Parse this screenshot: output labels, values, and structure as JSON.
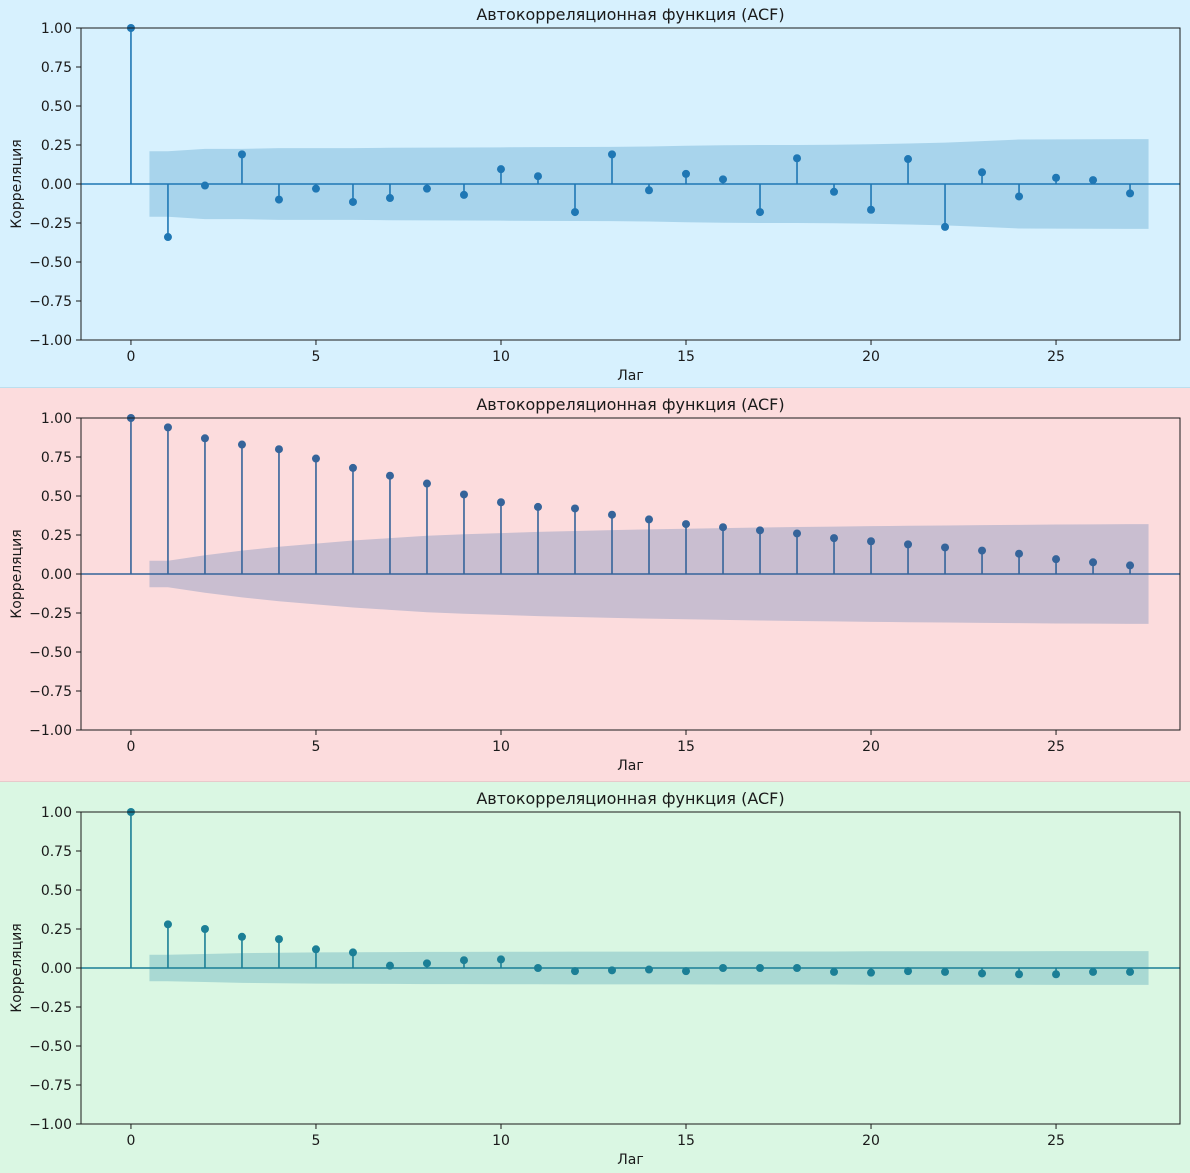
{
  "chart_data": [
    {
      "type": "stem",
      "title": "Автокорреляционная функция (ACF)",
      "xlabel": "Лаг",
      "ylabel": "Корреляция",
      "xlim": [
        -1.35,
        28.35
      ],
      "ylim": [
        -1.0,
        1.0
      ],
      "xticks": [
        0,
        5,
        10,
        15,
        20,
        25
      ],
      "yticks": [
        -1.0,
        -0.75,
        -0.5,
        -0.25,
        0.0,
        0.25,
        0.5,
        0.75,
        1.0
      ],
      "ytick_labels": [
        "−1.00",
        "−0.75",
        "−0.50",
        "−0.25",
        "0.00",
        "0.25",
        "0.50",
        "0.75",
        "1.00"
      ],
      "lags": [
        0,
        1,
        2,
        3,
        4,
        5,
        6,
        7,
        8,
        9,
        10,
        11,
        12,
        13,
        14,
        15,
        16,
        17,
        18,
        19,
        20,
        21,
        22,
        23,
        24,
        25,
        26,
        27
      ],
      "values": [
        1.0,
        -0.34,
        -0.01,
        0.19,
        -0.1,
        -0.03,
        -0.115,
        -0.09,
        -0.03,
        -0.07,
        0.095,
        0.05,
        -0.18,
        0.19,
        -0.04,
        0.065,
        0.03,
        -0.18,
        0.165,
        -0.05,
        -0.165,
        0.16,
        -0.275,
        0.075,
        -0.08,
        0.04,
        0.025,
        -0.06
      ],
      "confint": [
        0.21,
        0.225,
        0.225,
        0.23,
        0.23,
        0.23,
        0.232,
        0.233,
        0.234,
        0.235,
        0.236,
        0.237,
        0.238,
        0.24,
        0.245,
        0.248,
        0.25,
        0.25,
        0.252,
        0.255,
        0.26,
        0.265,
        0.275,
        0.285,
        0.286,
        0.287,
        0.288
      ],
      "colors": {
        "background": "#d7f1fe",
        "plot_bg": "#d7f1fe",
        "line": "#1f77b4",
        "band": "#a8d4ec"
      }
    },
    {
      "type": "stem",
      "title": "Автокорреляционная функция (ACF)",
      "xlabel": "Лаг",
      "ylabel": "Корреляция",
      "xlim": [
        -1.35,
        28.35
      ],
      "ylim": [
        -1.0,
        1.0
      ],
      "xticks": [
        0,
        5,
        10,
        15,
        20,
        25
      ],
      "yticks": [
        -1.0,
        -0.75,
        -0.5,
        -0.25,
        0.0,
        0.25,
        0.5,
        0.75,
        1.0
      ],
      "ytick_labels": [
        "−1.00",
        "−0.75",
        "−0.50",
        "−0.25",
        "0.00",
        "0.25",
        "0.50",
        "0.75",
        "1.00"
      ],
      "lags": [
        0,
        1,
        2,
        3,
        4,
        5,
        6,
        7,
        8,
        9,
        10,
        11,
        12,
        13,
        14,
        15,
        16,
        17,
        18,
        19,
        20,
        21,
        22,
        23,
        24,
        25,
        26,
        27
      ],
      "values": [
        1.0,
        0.94,
        0.87,
        0.83,
        0.8,
        0.74,
        0.68,
        0.63,
        0.58,
        0.51,
        0.46,
        0.43,
        0.42,
        0.38,
        0.35,
        0.32,
        0.3,
        0.28,
        0.26,
        0.23,
        0.21,
        0.19,
        0.17,
        0.15,
        0.13,
        0.095,
        0.075,
        0.055
      ],
      "confint": [
        0.085,
        0.12,
        0.15,
        0.175,
        0.195,
        0.215,
        0.23,
        0.245,
        0.255,
        0.262,
        0.27,
        0.276,
        0.281,
        0.286,
        0.29,
        0.294,
        0.298,
        0.301,
        0.304,
        0.307,
        0.309,
        0.311,
        0.313,
        0.315,
        0.317,
        0.318,
        0.32
      ],
      "colors": {
        "background": "#fcdcdd",
        "plot_bg": "#fcdcdd",
        "line": "#35649a",
        "band": "#c9bed0"
      }
    },
    {
      "type": "stem",
      "title": "Автокорреляционная функция (ACF)",
      "xlabel": "Лаг",
      "ylabel": "Корреляция",
      "xlim": [
        -1.35,
        28.35
      ],
      "ylim": [
        -1.0,
        1.0
      ],
      "xticks": [
        0,
        5,
        10,
        15,
        20,
        25
      ],
      "yticks": [
        -1.0,
        -0.75,
        -0.5,
        -0.25,
        0.0,
        0.25,
        0.5,
        0.75,
        1.0
      ],
      "ytick_labels": [
        "−1.00",
        "−0.75",
        "−0.50",
        "−0.25",
        "0.00",
        "0.25",
        "0.50",
        "0.75",
        "1.00"
      ],
      "lags": [
        0,
        1,
        2,
        3,
        4,
        5,
        6,
        7,
        8,
        9,
        10,
        11,
        12,
        13,
        14,
        15,
        16,
        17,
        18,
        19,
        20,
        21,
        22,
        23,
        24,
        25,
        26,
        27
      ],
      "values": [
        1.0,
        0.28,
        0.25,
        0.2,
        0.185,
        0.12,
        0.1,
        0.015,
        0.03,
        0.05,
        0.055,
        0.0,
        -0.02,
        -0.015,
        -0.01,
        -0.02,
        0.0,
        0.0,
        0.0,
        -0.025,
        -0.03,
        -0.02,
        -0.025,
        -0.035,
        -0.04,
        -0.04,
        -0.025,
        -0.025
      ],
      "confint": [
        0.085,
        0.09,
        0.095,
        0.098,
        0.1,
        0.101,
        0.102,
        0.103,
        0.103,
        0.104,
        0.104,
        0.105,
        0.105,
        0.105,
        0.105,
        0.106,
        0.106,
        0.106,
        0.106,
        0.107,
        0.107,
        0.107,
        0.107,
        0.107,
        0.108,
        0.108,
        0.108
      ],
      "colors": {
        "background": "#daf7e3",
        "plot_bg": "#daf7e3",
        "line": "#1b7f96",
        "band": "#a9d9d3"
      }
    }
  ]
}
